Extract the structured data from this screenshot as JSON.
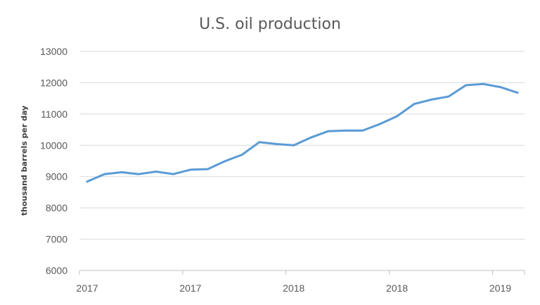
{
  "chart_data": {
    "type": "line",
    "title": "U.S. oil production",
    "xlabel": "",
    "ylabel": "thousand barrels per day",
    "ylim": [
      6000,
      13000
    ],
    "yticks": [
      6000,
      7000,
      8000,
      9000,
      10000,
      11000,
      12000,
      13000
    ],
    "xtick_labels": [
      "2017",
      "2017",
      "2018",
      "2018",
      "2019"
    ],
    "grid": true,
    "legend": "none",
    "colors": {
      "series": "#5b9bd5",
      "grid": "#d9d9d9",
      "text": "#595959"
    },
    "series": [
      {
        "values": [
          8840,
          9080,
          9140,
          9080,
          9160,
          9080,
          9220,
          9240,
          9490,
          9700,
          10100,
          10040,
          10000,
          10250,
          10450,
          10470,
          10470,
          10680,
          10930,
          11320,
          11460,
          11560,
          11920,
          11960,
          11860,
          11680
        ]
      }
    ]
  }
}
